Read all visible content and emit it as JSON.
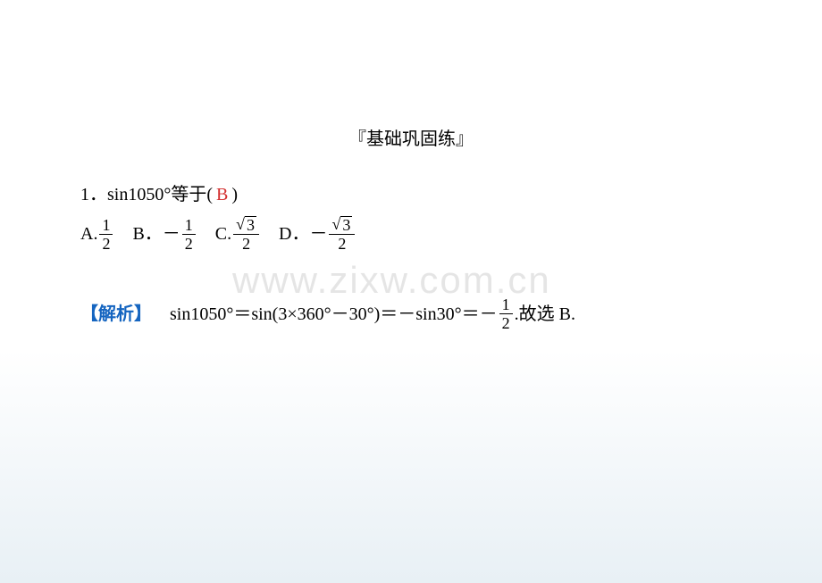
{
  "colors": {
    "answer": "#d32f2f",
    "explanation_label": "#1565c0",
    "text": "#000000",
    "watermark": "rgba(150,150,150,0.25)",
    "bg_top": "#ffffff",
    "bg_bottom": "#e8f0f5"
  },
  "section_title": "『基础巩固练』",
  "question": {
    "number": "1．",
    "stem_part1": "sin1050°等于(",
    "answer": "B",
    "stem_part2": ")"
  },
  "options": {
    "A_label": "A.",
    "A_num": "1",
    "A_den": "2",
    "B_label": "B．",
    "B_minus": "－",
    "B_num": "1",
    "B_den": "2",
    "C_label": "C.",
    "C_sqrt": "3",
    "C_den": "2",
    "D_label": "D．",
    "D_minus": "－",
    "D_sqrt": "3",
    "D_den": "2"
  },
  "explanation": {
    "label": "【解析】",
    "part1": "sin1050°＝sin(3×360°－30°)＝－sin30°＝－",
    "frac_num": "1",
    "frac_den": "2",
    "part2": ".故选 B."
  },
  "watermark": "www.zixw.com.cn"
}
